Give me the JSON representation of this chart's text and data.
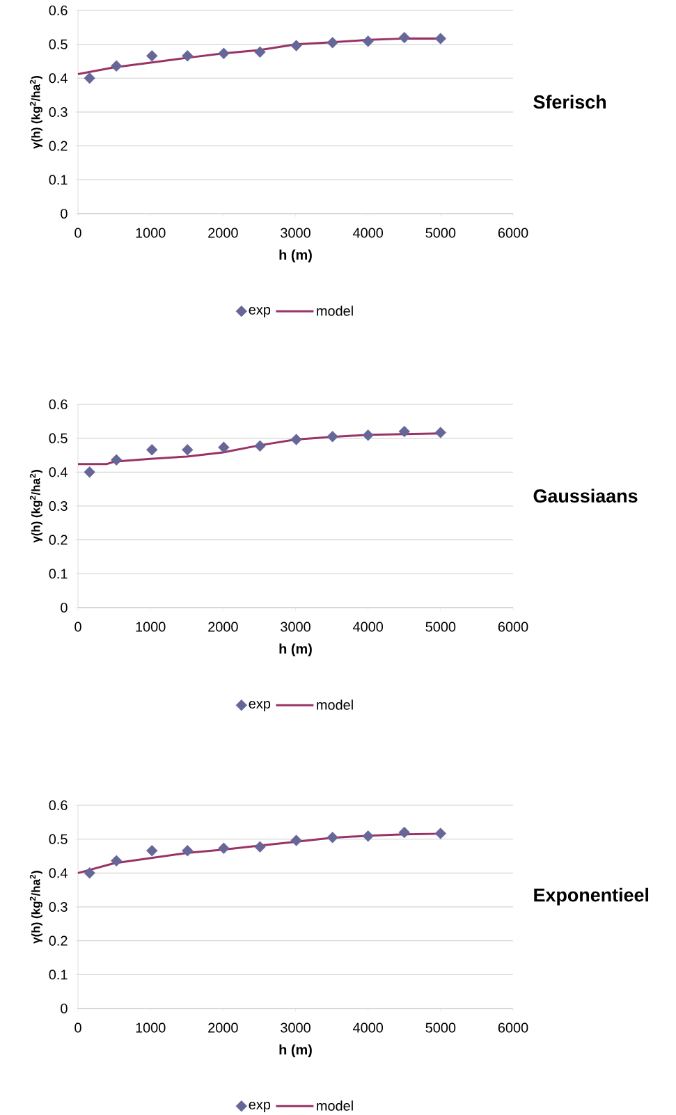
{
  "chart_data": [
    {
      "type": "scatter",
      "title": "Sferisch",
      "xlabel": "h (m)",
      "ylabel": "γ(h) (kg$^{2}$/ha$^{2}$)",
      "xlim": [
        0,
        6000
      ],
      "ylim": [
        0,
        0.6
      ],
      "xticks": [
        0,
        1000,
        2000,
        3000,
        4000,
        5000,
        6000
      ],
      "yticks": [
        0,
        0.1,
        0.2,
        0.3,
        0.4,
        0.5,
        0.6
      ],
      "grid": "y",
      "legend": "bottom",
      "series": [
        {
          "name": "exp",
          "color": "#666699",
          "marker": "diamond",
          "x": [
            160,
            530,
            1020,
            1510,
            2010,
            2510,
            3010,
            3510,
            4000,
            4500,
            5000
          ],
          "values": [
            0.4,
            0.436,
            0.466,
            0.466,
            0.473,
            0.477,
            0.496,
            0.505,
            0.509,
            0.52,
            0.517
          ]
        },
        {
          "name": "model",
          "type": "line",
          "color": "#993366",
          "x": [
            0,
            500,
            1000,
            1500,
            2000,
            2500,
            3000,
            3500,
            4000,
            4500,
            5000
          ],
          "values": [
            0.412,
            0.432,
            0.446,
            0.46,
            0.473,
            0.483,
            0.5,
            0.506,
            0.513,
            0.517,
            0.517
          ]
        }
      ]
    },
    {
      "type": "scatter",
      "title": "Gaussiaans",
      "xlabel": "h (m)",
      "ylabel": "γ(h) (kg$^{2}$/ha$^{2}$)",
      "xlim": [
        0,
        6000
      ],
      "ylim": [
        0,
        0.6
      ],
      "xticks": [
        0,
        1000,
        2000,
        3000,
        4000,
        5000,
        6000
      ],
      "yticks": [
        0,
        0.1,
        0.2,
        0.3,
        0.4,
        0.5,
        0.6
      ],
      "grid": "y",
      "legend": "bottom",
      "series": [
        {
          "name": "exp",
          "color": "#666699",
          "marker": "diamond",
          "x": [
            160,
            530,
            1020,
            1510,
            2010,
            2510,
            3010,
            3510,
            4000,
            4500,
            5000
          ],
          "values": [
            0.4,
            0.436,
            0.466,
            0.466,
            0.473,
            0.477,
            0.496,
            0.505,
            0.509,
            0.52,
            0.517
          ]
        },
        {
          "name": "model",
          "type": "line",
          "color": "#993366",
          "x": [
            0,
            400,
            500,
            1000,
            1500,
            2000,
            2500,
            3000,
            3500,
            4000,
            4500,
            5000
          ],
          "values": [
            0.424,
            0.424,
            0.431,
            0.439,
            0.446,
            0.458,
            0.479,
            0.496,
            0.504,
            0.51,
            0.512,
            0.514
          ]
        }
      ]
    },
    {
      "type": "scatter",
      "title": "Exponentieel",
      "xlabel": "h (m)",
      "ylabel": "γ(h) (kg$^{2}$/ha$^{2}$)",
      "xlim": [
        0,
        6000
      ],
      "ylim": [
        0,
        0.6
      ],
      "xticks": [
        0,
        1000,
        2000,
        3000,
        4000,
        5000,
        6000
      ],
      "yticks": [
        0,
        0.1,
        0.2,
        0.3,
        0.4,
        0.5,
        0.6
      ],
      "grid": "y",
      "legend": "bottom",
      "series": [
        {
          "name": "exp",
          "color": "#666699",
          "marker": "diamond",
          "x": [
            160,
            530,
            1020,
            1510,
            2010,
            2510,
            3010,
            3510,
            4000,
            4500,
            5000
          ],
          "values": [
            0.4,
            0.436,
            0.466,
            0.466,
            0.473,
            0.477,
            0.496,
            0.505,
            0.509,
            0.52,
            0.517
          ]
        },
        {
          "name": "model",
          "type": "line",
          "color": "#993366",
          "x": [
            0,
            500,
            1000,
            1500,
            2000,
            2500,
            3000,
            3500,
            4000,
            4500,
            5000
          ],
          "values": [
            0.4,
            0.429,
            0.444,
            0.459,
            0.469,
            0.481,
            0.492,
            0.504,
            0.51,
            0.514,
            0.516
          ]
        }
      ]
    }
  ]
}
